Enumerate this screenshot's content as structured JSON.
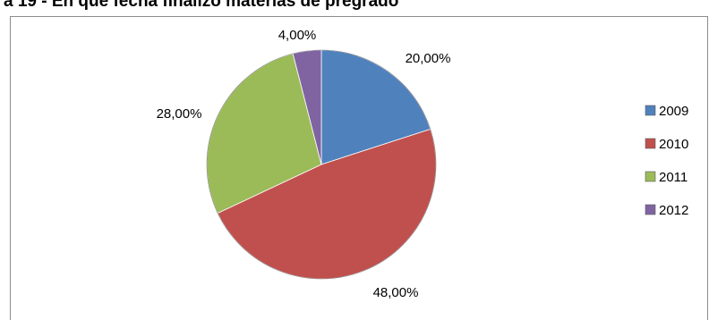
{
  "chart_data": {
    "type": "pie",
    "title": "a 19 - En que fecha finalizó materias de pregrado",
    "categories": [
      "2009",
      "2010",
      "2011",
      "2012"
    ],
    "values": [
      20.0,
      48.0,
      28.0,
      4.0
    ],
    "data_labels": [
      "20,00%",
      "48,00%",
      "28,00%",
      "4,00%"
    ],
    "colors": [
      "#4F81BD",
      "#C0504D",
      "#9BBB59",
      "#8064A2"
    ],
    "start_angle_deg": 0,
    "direction": "clockwise",
    "legend": {
      "placement": "right",
      "entries": [
        "2009",
        "2010",
        "2011",
        "2012"
      ]
    }
  }
}
